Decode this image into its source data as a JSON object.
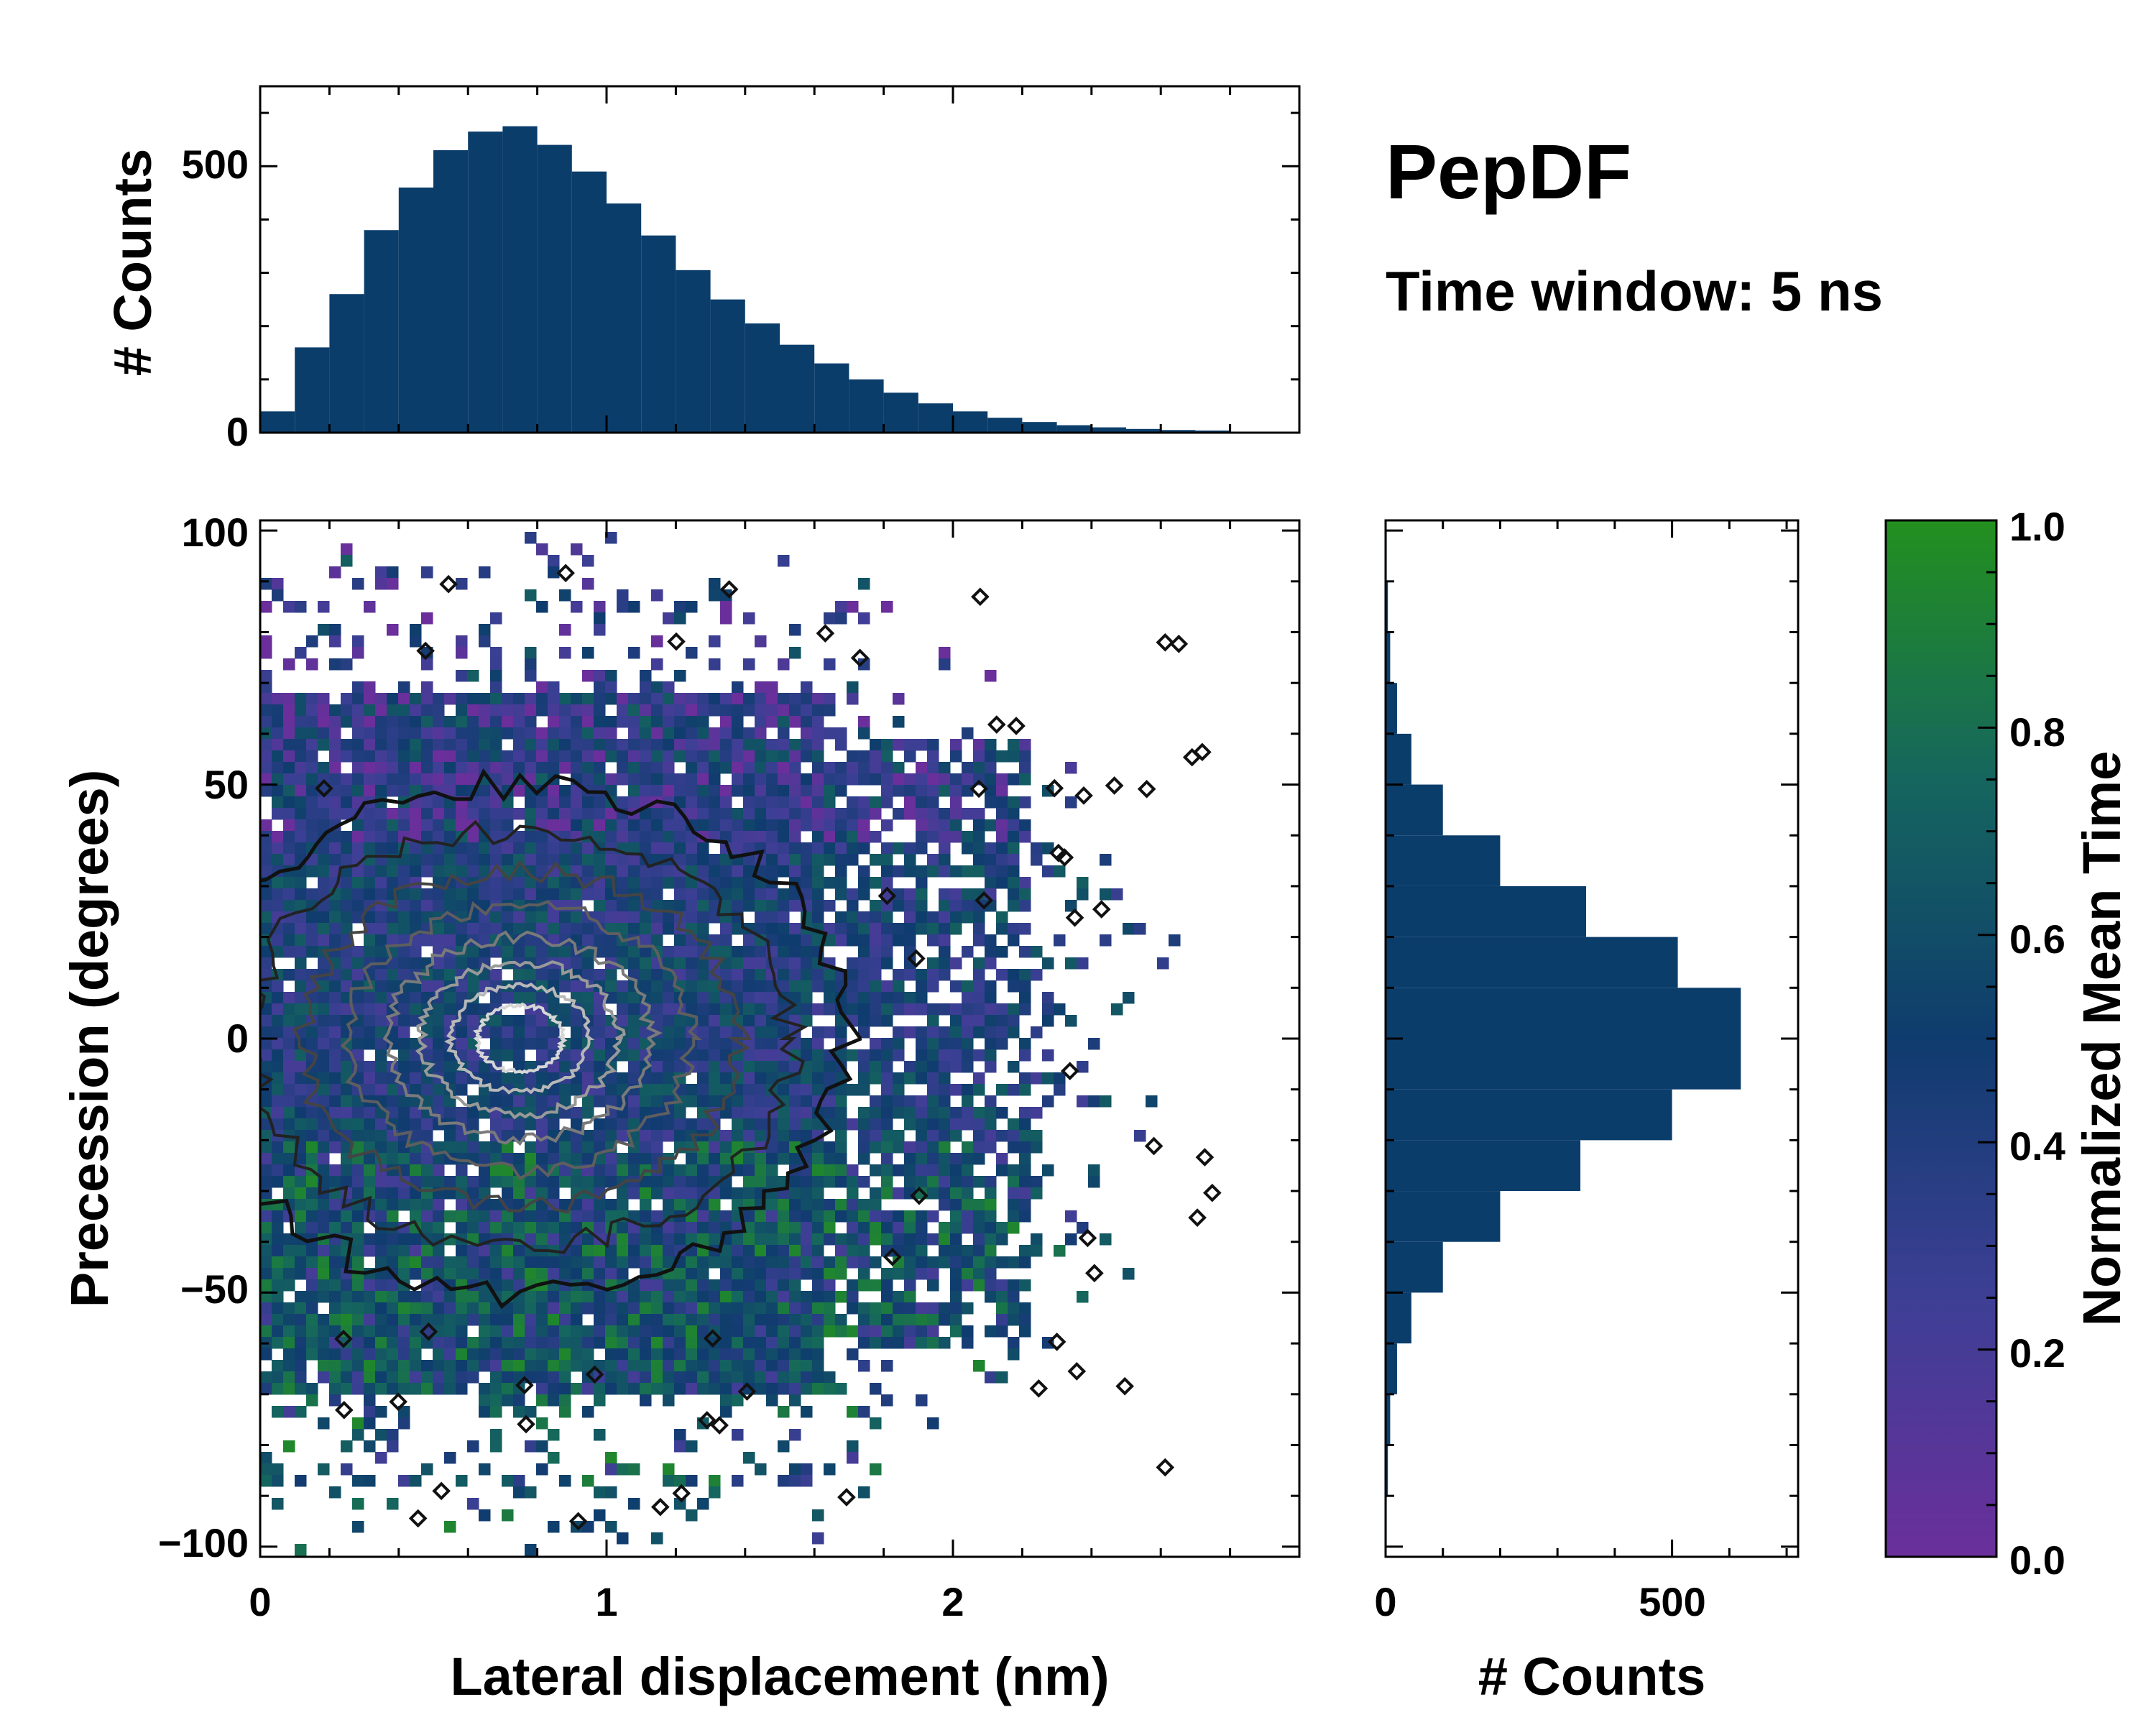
{
  "colors": {
    "bar_fill": "#0b3d6b",
    "purple": "#6a2f9b",
    "navy": "#0f3c6e",
    "green": "#23901f",
    "contour_outer": "#111111"
  },
  "chart_data": {
    "title": "PepDF",
    "subtitle": "Time window: 5 ns",
    "joint": {
      "type": "heatmap",
      "xlabel": "Lateral displacement (nm)",
      "ylabel": "Precession (degrees)",
      "xlim": [
        0,
        3.0
      ],
      "ylim": [
        -102,
        102
      ],
      "xticks": [
        "0",
        "1",
        "2"
      ],
      "xtick_values": [
        0,
        1,
        2
      ],
      "yticks": [
        "−100",
        "−50",
        "0",
        "50",
        "100"
      ],
      "ytick_values": [
        -100,
        -50,
        0,
        50,
        100
      ],
      "density_peak": {
        "x": 0.75,
        "y": 0
      },
      "color_metric": "Normalized Mean Time"
    },
    "top_histogram": {
      "type": "bar",
      "ylabel": "# Counts",
      "ylim": [
        0,
        650
      ],
      "yticks": [
        "0",
        "500"
      ],
      "ytick_values": [
        0,
        500
      ],
      "bin_centers": [
        0.05,
        0.15,
        0.25,
        0.35,
        0.45,
        0.55,
        0.65,
        0.75,
        0.85,
        0.95,
        1.05,
        1.15,
        1.25,
        1.35,
        1.45,
        1.55,
        1.65,
        1.75,
        1.85,
        1.95,
        2.05,
        2.15,
        2.25,
        2.35,
        2.45,
        2.55,
        2.65,
        2.75,
        2.85,
        2.95
      ],
      "values": [
        40,
        160,
        260,
        380,
        460,
        530,
        565,
        575,
        540,
        490,
        430,
        370,
        305,
        250,
        205,
        165,
        130,
        100,
        75,
        55,
        40,
        28,
        20,
        14,
        10,
        7,
        5,
        4,
        2,
        1
      ]
    },
    "right_histogram": {
      "type": "bar",
      "orientation": "horizontal",
      "xlabel": "# Counts",
      "xlim": [
        0,
        720
      ],
      "xticks": [
        "0",
        "500"
      ],
      "xtick_values": [
        0,
        500
      ],
      "bin_centers": [
        -95,
        -85,
        -75,
        -65,
        -55,
        -45,
        -35,
        -25,
        -15,
        -5,
        5,
        15,
        25,
        35,
        45,
        55,
        65,
        75,
        85,
        95
      ],
      "values": [
        2,
        4,
        8,
        20,
        45,
        100,
        200,
        340,
        500,
        620,
        620,
        510,
        350,
        200,
        100,
        45,
        20,
        8,
        4,
        2
      ]
    },
    "colorbar": {
      "label": "Normalized Mean Time",
      "range": [
        0.0,
        1.0
      ],
      "ticks": [
        "0.0",
        "0.2",
        "0.4",
        "0.6",
        "0.8",
        "1.0"
      ],
      "tick_values": [
        0.0,
        0.2,
        0.4,
        0.6,
        0.8,
        1.0
      ]
    }
  }
}
